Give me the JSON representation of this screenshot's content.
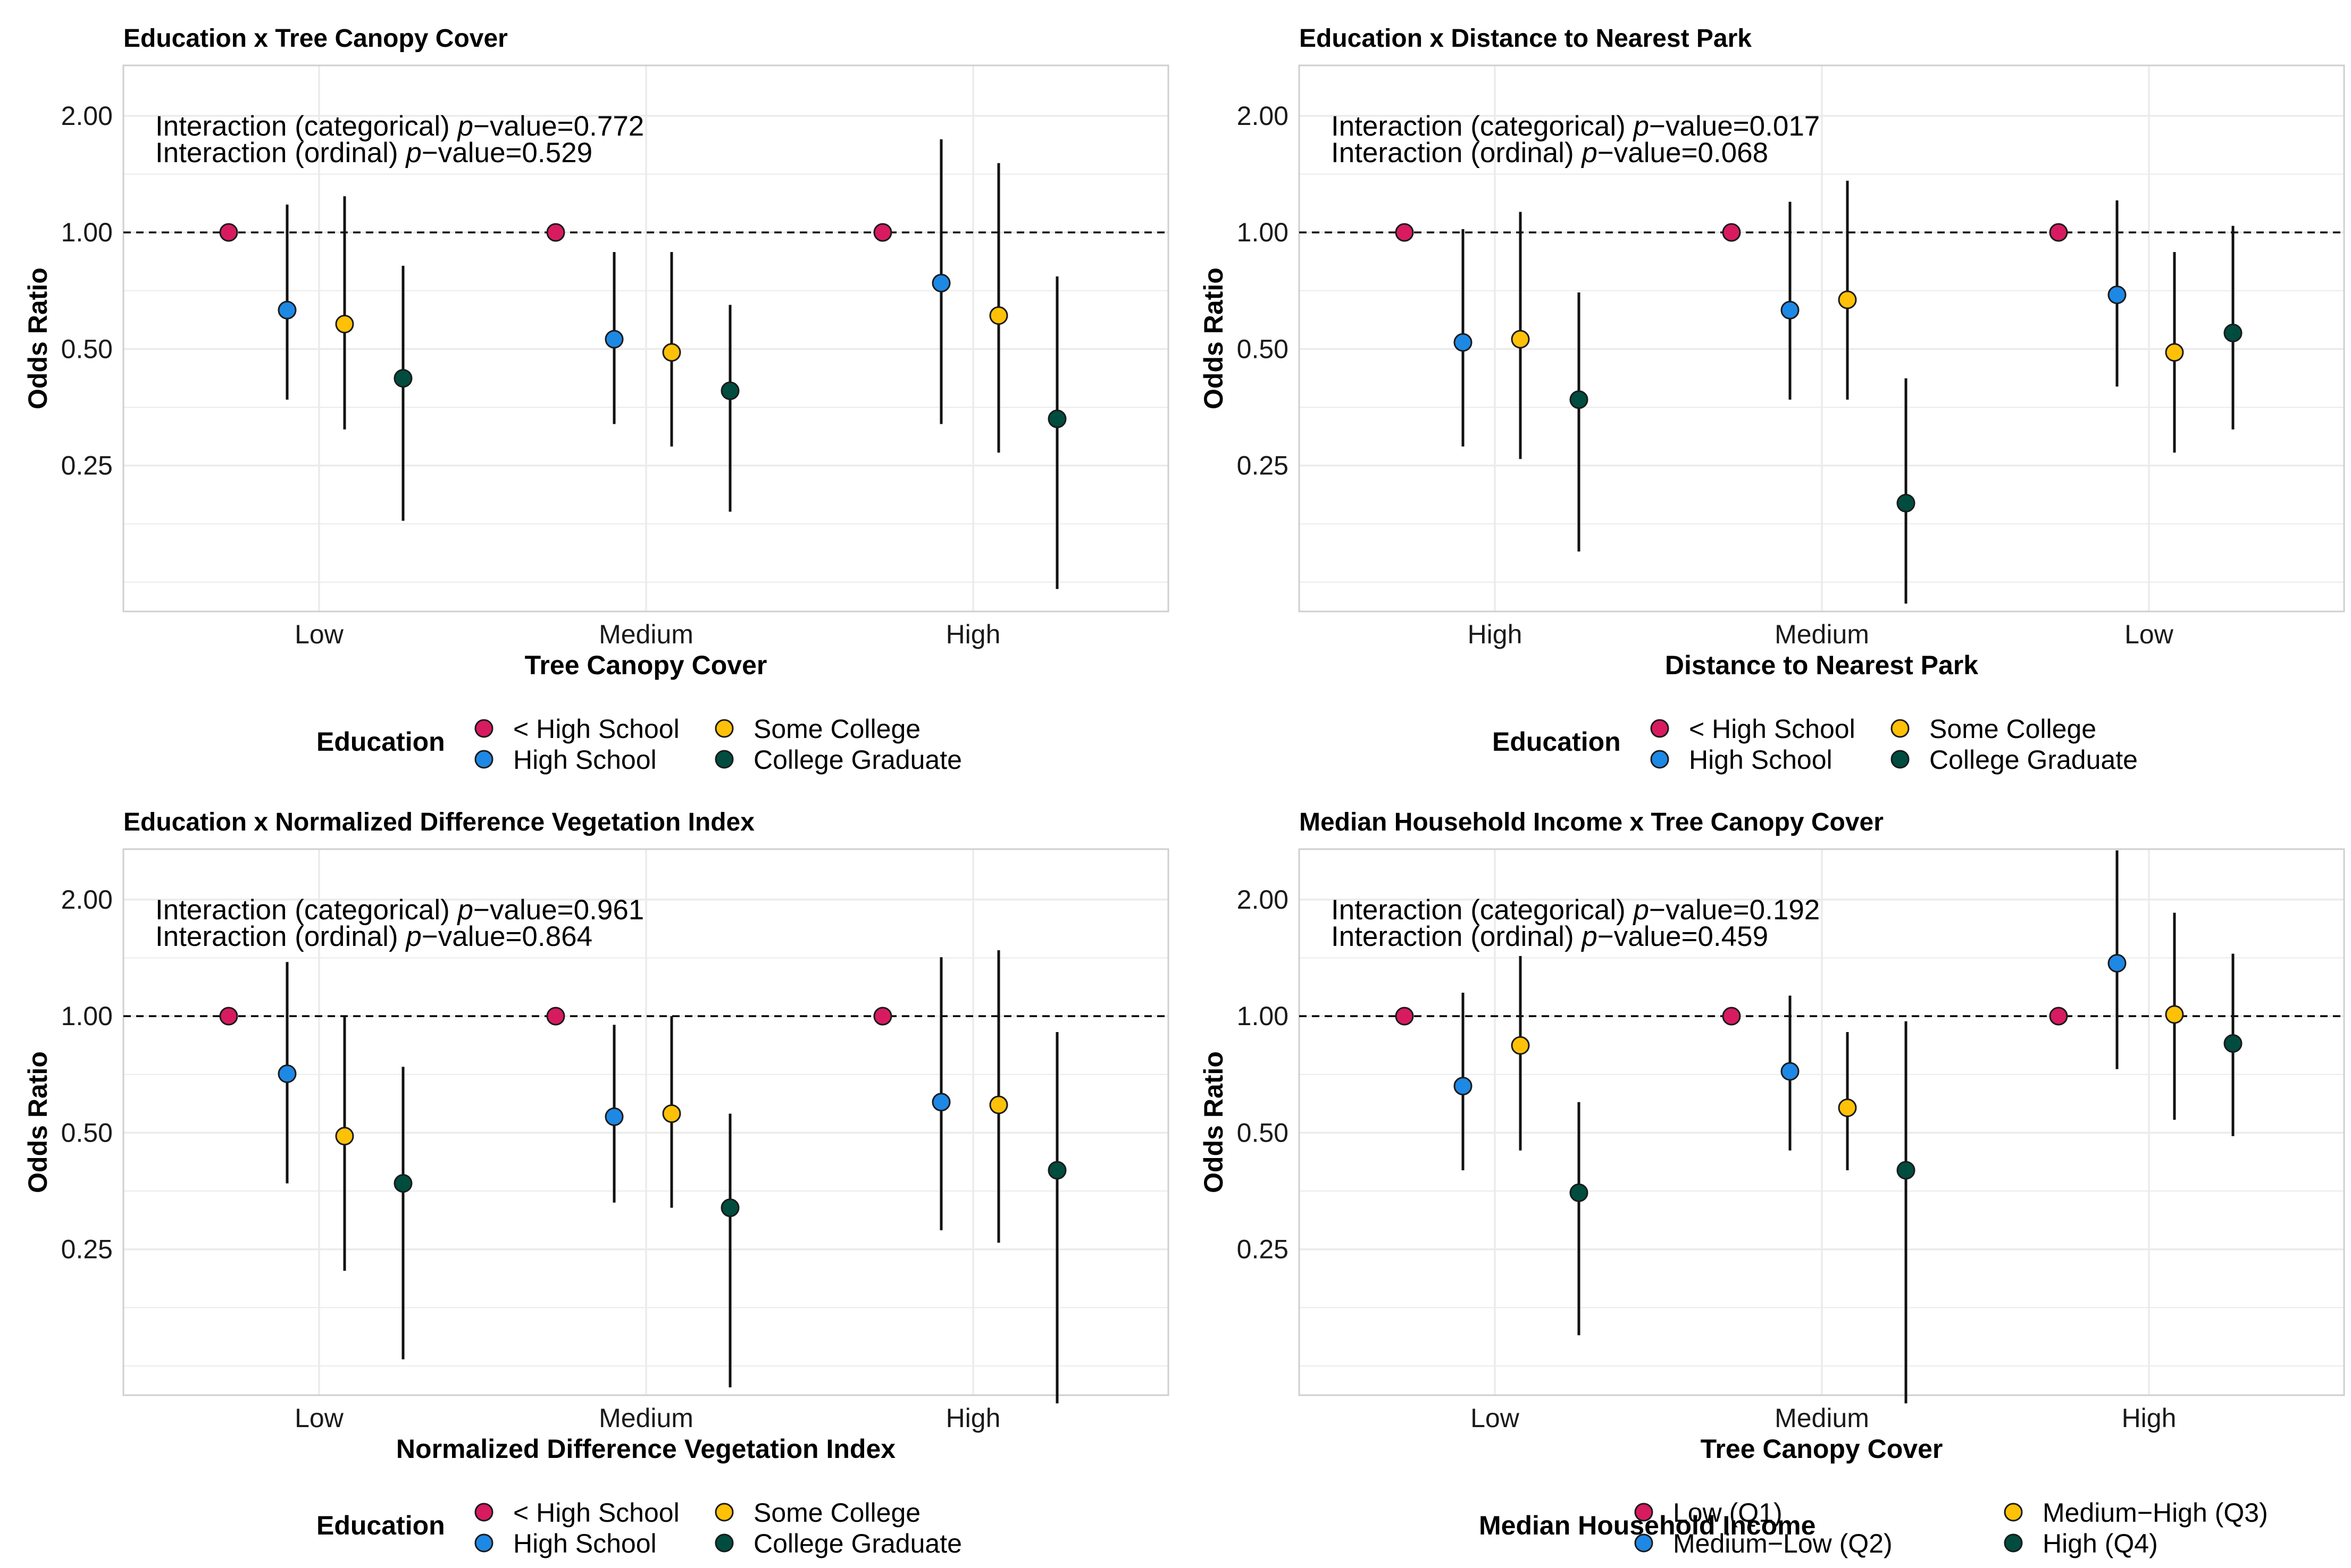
{
  "colors": {
    "series": [
      "#d81b60",
      "#1e88e5",
      "#ffc107",
      "#004d40"
    ],
    "grid": "#ebebeb",
    "frame": "#cfcfcf",
    "ref_line": "#000000"
  },
  "chart_data": [
    {
      "type": "scatter",
      "title": "Education x Tree Canopy Cover",
      "xlabel": "Tree Canopy Cover",
      "ylabel": "Odds Ratio",
      "categories": [
        "Low",
        "Medium",
        "High"
      ],
      "y_scale": "log2",
      "ylim": [
        0.105,
        2.7
      ],
      "yticks": [
        "0.25",
        "0.50",
        "1.00",
        "2.00"
      ],
      "reference_line": 1.0,
      "annotation_line1_prefix": "Interaction (categorical) ",
      "annotation_line1_value": "=0.772",
      "annotation_line2_prefix": "Interaction (ordinal) ",
      "annotation_line2_value": "=0.529",
      "annotation_p_label": "p",
      "annotation_p_suffix": "−value",
      "legend_title": "Education",
      "legend_labels": [
        "< High School",
        "High School",
        "Some College",
        "College Graduate"
      ],
      "series": [
        {
          "name": "< High School",
          "values": [
            1.0,
            1.0,
            1.0
          ],
          "lower": [
            null,
            null,
            null
          ],
          "upper": [
            null,
            null,
            null
          ]
        },
        {
          "name": "High School",
          "values": [
            0.63,
            0.53,
            0.74
          ],
          "lower": [
            0.37,
            0.32,
            0.32
          ],
          "upper": [
            1.18,
            0.89,
            1.74
          ]
        },
        {
          "name": "Some College",
          "values": [
            0.58,
            0.49,
            0.61
          ],
          "lower": [
            0.31,
            0.28,
            0.27
          ],
          "upper": [
            1.24,
            0.89,
            1.51
          ]
        },
        {
          "name": "College Graduate",
          "values": [
            0.42,
            0.39,
            0.33
          ],
          "lower": [
            0.18,
            0.19,
            0.12
          ],
          "upper": [
            0.82,
            0.65,
            0.77
          ]
        }
      ]
    },
    {
      "type": "scatter",
      "title": "Education x Distance to Nearest Park",
      "xlabel": "Distance to Nearest Park",
      "ylabel": "Odds Ratio",
      "categories": [
        "High",
        "Medium",
        "Low"
      ],
      "y_scale": "log2",
      "ylim": [
        0.105,
        2.7
      ],
      "yticks": [
        "0.25",
        "0.50",
        "1.00",
        "2.00"
      ],
      "reference_line": 1.0,
      "annotation_line1_prefix": "Interaction (categorical) ",
      "annotation_line1_value": "=0.017",
      "annotation_line2_prefix": "Interaction (ordinal) ",
      "annotation_line2_value": "=0.068",
      "annotation_p_label": "p",
      "annotation_p_suffix": "−value",
      "legend_title": "Education",
      "legend_labels": [
        "< High School",
        "High School",
        "Some College",
        "College Graduate"
      ],
      "series": [
        {
          "name": "< High School",
          "values": [
            1.0,
            1.0,
            1.0
          ],
          "lower": [
            null,
            null,
            null
          ],
          "upper": [
            null,
            null,
            null
          ]
        },
        {
          "name": "High School",
          "values": [
            0.52,
            0.63,
            0.69
          ],
          "lower": [
            0.28,
            0.37,
            0.4
          ],
          "upper": [
            1.02,
            1.2,
            1.21
          ]
        },
        {
          "name": "Some College",
          "values": [
            0.53,
            0.67,
            0.49
          ],
          "lower": [
            0.26,
            0.37,
            0.27
          ],
          "upper": [
            1.13,
            1.36,
            0.89
          ]
        },
        {
          "name": "College Graduate",
          "values": [
            0.37,
            0.2,
            0.55
          ],
          "lower": [
            0.15,
            0.11,
            0.31
          ],
          "upper": [
            0.7,
            0.42,
            1.04
          ]
        }
      ]
    },
    {
      "type": "scatter",
      "title": "Education x Normalized Difference Vegetation Index",
      "xlabel": "Normalized Difference Vegetation Index",
      "ylabel": "Odds Ratio",
      "categories": [
        "Low",
        "Medium",
        "High"
      ],
      "y_scale": "log2",
      "ylim": [
        0.105,
        2.7
      ],
      "yticks": [
        "0.25",
        "0.50",
        "1.00",
        "2.00"
      ],
      "reference_line": 1.0,
      "annotation_line1_prefix": "Interaction (categorical) ",
      "annotation_line1_value": "=0.961",
      "annotation_line2_prefix": "Interaction (ordinal) ",
      "annotation_line2_value": "=0.864",
      "annotation_p_label": "p",
      "annotation_p_suffix": "−value",
      "legend_title": "Education",
      "legend_labels": [
        "< High School",
        "High School",
        "Some College",
        "College Graduate"
      ],
      "series": [
        {
          "name": "< High School",
          "values": [
            1.0,
            1.0,
            1.0
          ],
          "lower": [
            null,
            null,
            null
          ],
          "upper": [
            null,
            null,
            null
          ]
        },
        {
          "name": "High School",
          "values": [
            0.71,
            0.55,
            0.6
          ],
          "lower": [
            0.37,
            0.33,
            0.28
          ],
          "upper": [
            1.38,
            0.95,
            1.42
          ]
        },
        {
          "name": "Some College",
          "values": [
            0.49,
            0.56,
            0.59
          ],
          "lower": [
            0.22,
            0.32,
            0.26
          ],
          "upper": [
            1.0,
            1.0,
            1.48
          ]
        },
        {
          "name": "College Graduate",
          "values": [
            0.37,
            0.32,
            0.4
          ],
          "lower": [
            0.13,
            0.11,
            0.1
          ],
          "upper": [
            0.74,
            0.56,
            0.91
          ]
        }
      ]
    },
    {
      "type": "scatter",
      "title": "Median Household Income x Tree Canopy Cover",
      "xlabel": "Tree Canopy Cover",
      "ylabel": "Odds Ratio",
      "categories": [
        "Low",
        "Medium",
        "High"
      ],
      "y_scale": "log2",
      "ylim": [
        0.105,
        2.7
      ],
      "yticks": [
        "0.25",
        "0.50",
        "1.00",
        "2.00"
      ],
      "reference_line": 1.0,
      "annotation_line1_prefix": "Interaction (categorical) ",
      "annotation_line1_value": "=0.192",
      "annotation_line2_prefix": "Interaction (ordinal) ",
      "annotation_line2_value": "=0.459",
      "annotation_p_label": "p",
      "annotation_p_suffix": "−value",
      "legend_title": "Median Household Income",
      "legend_labels": [
        "Low (Q1)",
        "Medium−Low (Q2)",
        "Medium−High (Q3)",
        "High (Q4)"
      ],
      "series": [
        {
          "name": "Low (Q1)",
          "values": [
            1.0,
            1.0,
            1.0
          ],
          "lower": [
            null,
            null,
            null
          ],
          "upper": [
            null,
            null,
            null
          ]
        },
        {
          "name": "Medium−Low (Q2)",
          "values": [
            0.66,
            0.72,
            1.37
          ],
          "lower": [
            0.4,
            0.45,
            0.73
          ],
          "upper": [
            1.15,
            1.13,
            2.68
          ]
        },
        {
          "name": "Medium−High (Q3)",
          "values": [
            0.84,
            0.58,
            1.01
          ],
          "lower": [
            0.45,
            0.4,
            0.54
          ],
          "upper": [
            1.43,
            0.91,
            1.85
          ]
        },
        {
          "name": "High (Q4)",
          "values": [
            0.35,
            0.4,
            0.85
          ],
          "lower": [
            0.15,
            0.1,
            0.49
          ],
          "upper": [
            0.6,
            0.97,
            1.45
          ]
        }
      ]
    }
  ]
}
